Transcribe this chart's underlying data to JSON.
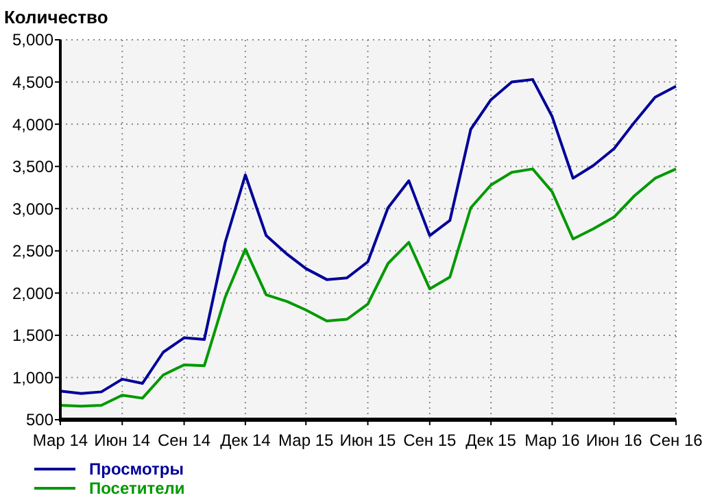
{
  "chart_data": {
    "type": "line",
    "title": "Количество",
    "x": [
      "2014-03",
      "2014-04",
      "2014-05",
      "2014-06",
      "2014-07",
      "2014-08",
      "2014-09",
      "2014-10",
      "2014-11",
      "2014-12",
      "2015-01",
      "2015-02",
      "2015-03",
      "2015-04",
      "2015-05",
      "2015-06",
      "2015-07",
      "2015-08",
      "2015-09",
      "2015-10",
      "2015-11",
      "2015-12",
      "2016-01",
      "2016-02",
      "2016-03",
      "2016-04",
      "2016-05",
      "2016-06",
      "2016-07",
      "2016-08",
      "2016-09"
    ],
    "series": [
      {
        "name": "Просмотры",
        "color": "#000099",
        "values": [
          840,
          810,
          830,
          980,
          930,
          1300,
          1470,
          1450,
          2600,
          3400,
          2680,
          2460,
          2290,
          2160,
          2180,
          2370,
          3010,
          3330,
          2680,
          2860,
          3940,
          4290,
          4500,
          4530,
          4090,
          3360,
          3510,
          3710,
          4020,
          4320,
          4450
        ]
      },
      {
        "name": "Посетители",
        "color": "#009900",
        "values": [
          670,
          660,
          670,
          790,
          755,
          1030,
          1150,
          1140,
          1950,
          2520,
          1980,
          1900,
          1800,
          1670,
          1690,
          1870,
          2350,
          2600,
          2050,
          2190,
          3010,
          3280,
          3430,
          3470,
          3200,
          2640,
          2760,
          2900,
          3150,
          3360,
          3470
        ]
      }
    ],
    "xlim": [
      "2014-03",
      "2016-09"
    ],
    "xticks": [
      {
        "value": "2014-03",
        "label": "Мар 14"
      },
      {
        "value": "2014-06",
        "label": "Июн 14"
      },
      {
        "value": "2014-09",
        "label": "Сен 14"
      },
      {
        "value": "2014-12",
        "label": "Дек 14"
      },
      {
        "value": "2015-03",
        "label": "Мар 15"
      },
      {
        "value": "2015-06",
        "label": "Июн 15"
      },
      {
        "value": "2015-09",
        "label": "Сен 15"
      },
      {
        "value": "2015-12",
        "label": "Дек 15"
      },
      {
        "value": "2016-03",
        "label": "Мар 16"
      },
      {
        "value": "2016-06",
        "label": "Июн 16"
      },
      {
        "value": "2016-09",
        "label": "Сен 16"
      }
    ],
    "ylim": [
      500,
      5000
    ],
    "yticks": [
      {
        "value": 500,
        "label": "500"
      },
      {
        "value": 1000,
        "label": "1,000"
      },
      {
        "value": 1500,
        "label": "1,500"
      },
      {
        "value": 2000,
        "label": "2,000"
      },
      {
        "value": 2500,
        "label": "2,500"
      },
      {
        "value": 3000,
        "label": "3,000"
      },
      {
        "value": 3500,
        "label": "3,500"
      },
      {
        "value": 4000,
        "label": "4,000"
      },
      {
        "value": 4500,
        "label": "4,500"
      },
      {
        "value": 5000,
        "label": "5,000"
      }
    ],
    "grid": true,
    "legend": "bottom left",
    "marker": "none",
    "line_style": "solid"
  }
}
